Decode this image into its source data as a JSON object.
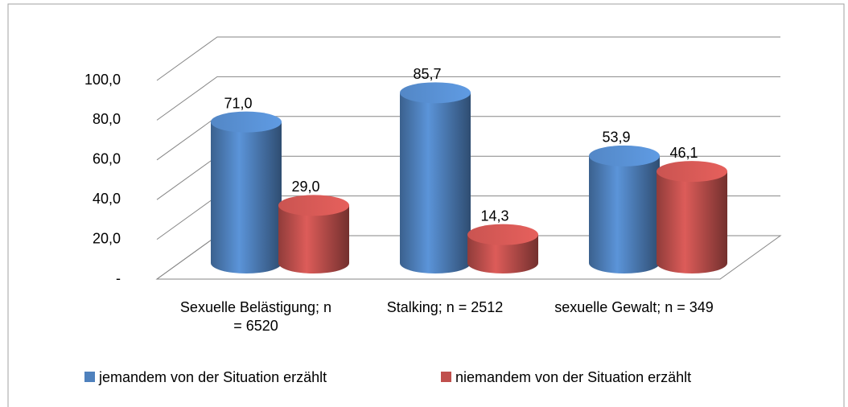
{
  "chart_data": {
    "type": "bar3d",
    "categories": [
      "Sexuelle Belästigung; n = 6520",
      "Stalking; n = 2512",
      "sexuelle Gewalt; n = 349"
    ],
    "series": [
      {
        "name": "jemandem von der Situation erzählt",
        "color": "#4f81bd",
        "values": [
          71.0,
          85.7,
          53.9
        ],
        "value_labels": [
          "71,0",
          "85,7",
          "53,9"
        ]
      },
      {
        "name": "niemandem von der Situation erzählt",
        "color": "#c0504d",
        "values": [
          29.0,
          14.3,
          46.1
        ],
        "value_labels": [
          "29,0",
          "14,3",
          "46,1"
        ]
      }
    ],
    "ylim": [
      0,
      100
    ],
    "yticks": [
      {
        "value": 0,
        "label": "-"
      },
      {
        "value": 20,
        "label": "20,0"
      },
      {
        "value": 40,
        "label": "40,0"
      },
      {
        "value": 60,
        "label": "60,0"
      },
      {
        "value": 80,
        "label": "80,0"
      },
      {
        "value": 100,
        "label": "100,0"
      }
    ],
    "grid": true,
    "legend": "bottom"
  }
}
